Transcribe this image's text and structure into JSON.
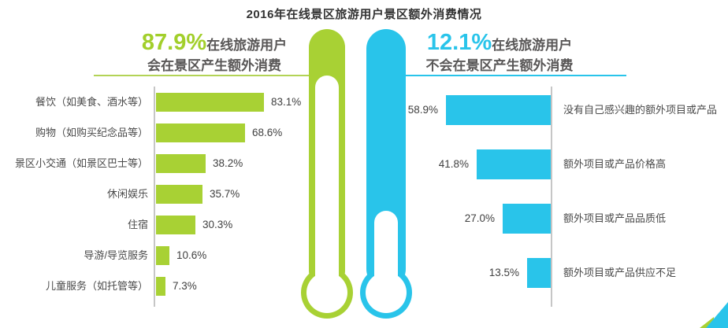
{
  "title": "2016年在线景区旅游用户景区额外消费情况",
  "left_panel": {
    "pct": "87.9%",
    "pct_suffix": "在线旅游用户",
    "line2": "会在景区产生额外消费"
  },
  "right_panel": {
    "pct": "12.1%",
    "pct_suffix": "在线旅游用户",
    "line2": "不会在景区产生额外消费"
  },
  "colors": {
    "green": "#A8D134",
    "blue": "#29C4EA",
    "headline_green": "#A2CF2B",
    "headline_blue": "#29C4EA",
    "text_gray": "#595757",
    "label_gray": "#4A4A4A",
    "axis_gray": "#C6C6C6",
    "rule_green": "#B3D356"
  },
  "decor": {
    "left_thermometer": "empty-thermometer-green",
    "right_thermometer": "filled-thermometer-blue",
    "corner": "blue-green-corner-triangle"
  },
  "chart_data": [
    {
      "type": "bar",
      "side": "left",
      "orientation": "horizontal",
      "group_label": "87.9% 在线旅游用户会在景区产生额外消费",
      "categories": [
        "餐饮（如美食、酒水等）",
        "购物（如购买纪念品等）",
        "景区小交通（如景区巴士等）",
        "休闲娱乐",
        "住宿",
        "导游/导览服务",
        "儿童服务（如托管等）"
      ],
      "values": [
        83.1,
        68.6,
        38.2,
        35.7,
        30.3,
        10.6,
        7.3
      ],
      "value_labels": [
        "83.1%",
        "68.6%",
        "38.2%",
        "35.7%",
        "30.3%",
        "10.6%",
        "7.3%"
      ],
      "unit": "%",
      "bar_color": "#A8D134",
      "xlim": [
        0,
        100
      ],
      "grid": false,
      "legend": "none"
    },
    {
      "type": "bar",
      "side": "right",
      "orientation": "horizontal-mirrored",
      "group_label": "12.1% 在线旅游用户不会在景区产生额外消费",
      "categories": [
        "没有自己感兴趣的额外项目或产品",
        "额外项目或产品价格高",
        "额外项目或产品品质低",
        "额外项目或产品供应不足"
      ],
      "values": [
        58.9,
        41.8,
        27.0,
        13.5
      ],
      "value_labels": [
        "58.9%",
        "41.8%",
        "27.0%",
        "13.5%"
      ],
      "unit": "%",
      "bar_color": "#29C4EA",
      "xlim": [
        0,
        100
      ],
      "grid": false,
      "legend": "none"
    }
  ]
}
